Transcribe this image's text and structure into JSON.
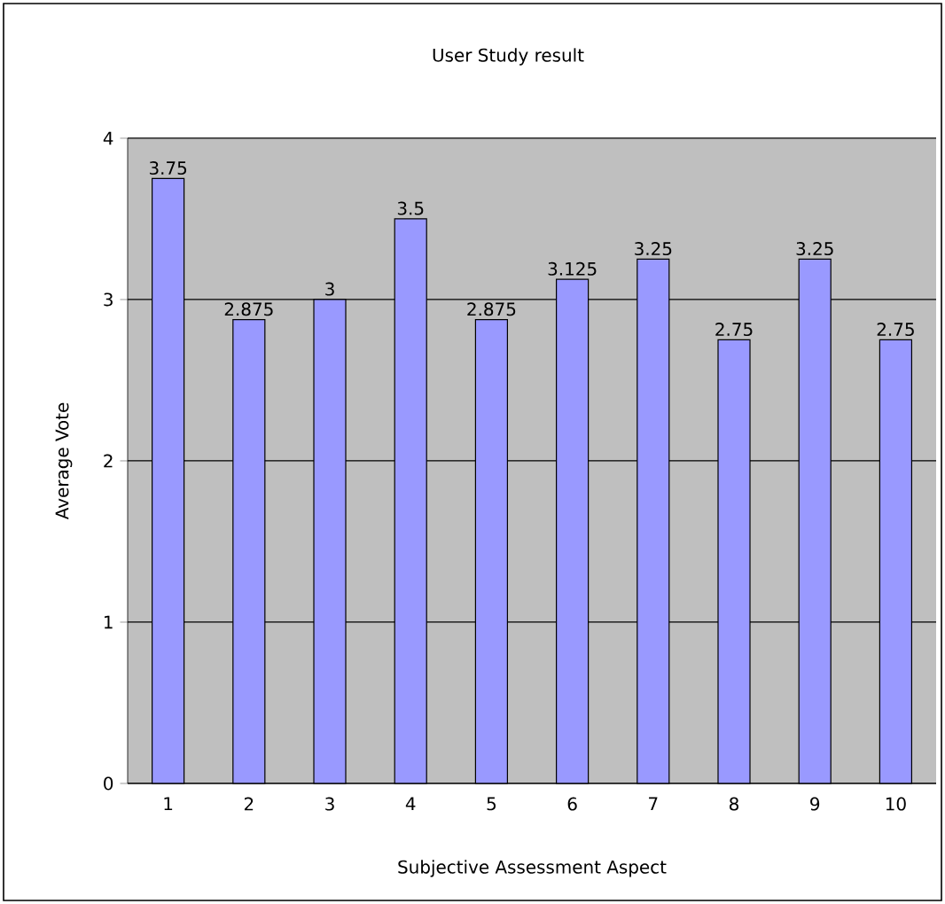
{
  "chart_data": {
    "type": "bar",
    "title": "User Study result",
    "xlabel": "Subjective Assessment Aspect",
    "ylabel": "Average Vote",
    "categories": [
      "1",
      "2",
      "3",
      "4",
      "5",
      "6",
      "7",
      "8",
      "9",
      "10"
    ],
    "values": [
      3.75,
      2.875,
      3,
      3.5,
      2.875,
      3.125,
      3.25,
      2.75,
      3.25,
      2.75
    ],
    "color": "#9999ff",
    "ylim": [
      0,
      4
    ],
    "yticks": [
      0,
      1,
      2,
      3,
      4
    ],
    "grid": "y",
    "data_labels": true
  }
}
